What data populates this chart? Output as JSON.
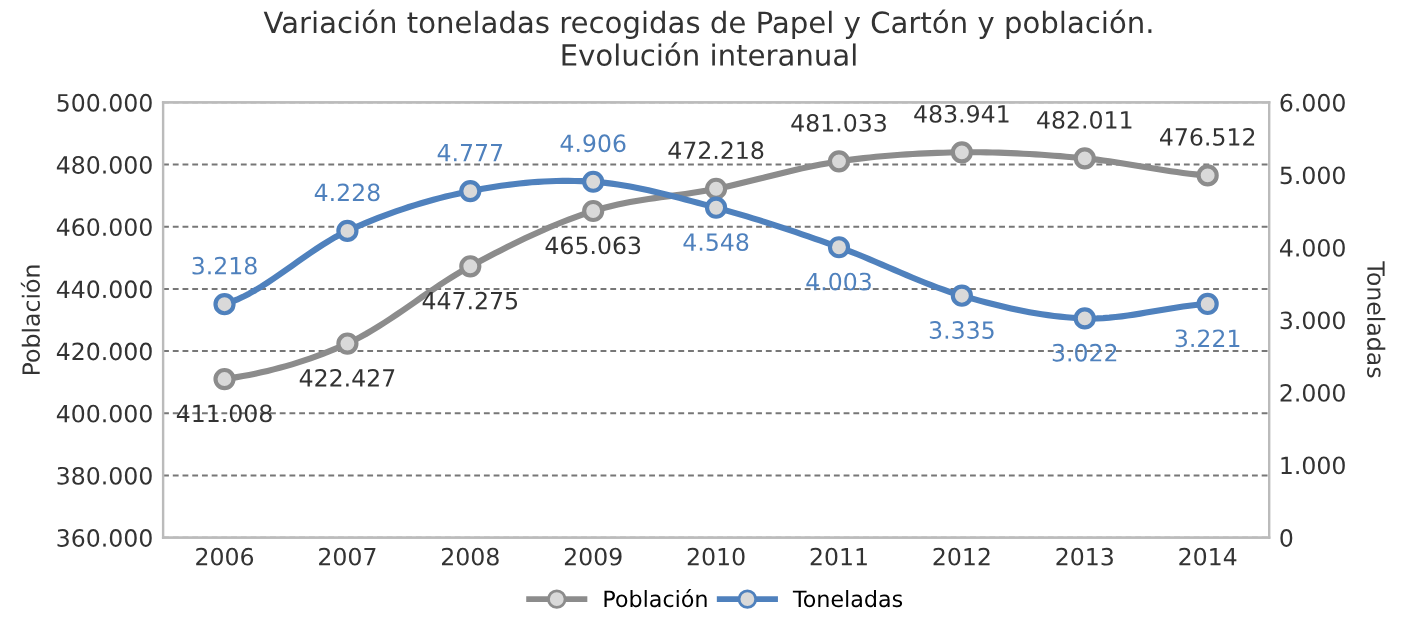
{
  "chart_data": {
    "type": "line",
    "title": "Variación toneladas recogidas de Papel y Cartón y población.\nEvolución interanual",
    "ylabel": "Población",
    "y2label": "Toneladas",
    "categories": [
      "2006",
      "2007",
      "2008",
      "2009",
      "2010",
      "2011",
      "2012",
      "2013",
      "2014"
    ],
    "series": [
      {
        "name": "Población",
        "color": "#8c8c8c",
        "values": [
          411008,
          422427,
          447275,
          465063,
          472218,
          481033,
          483941,
          482011,
          476512
        ],
        "value_labels": [
          "411.008",
          "422.427",
          "447.275",
          "465.063",
          "472.218",
          "481.033",
          "483.941",
          "482.011",
          "476.512"
        ]
      },
      {
        "name": "Toneladas",
        "color": "#4f81bd",
        "axis": "y2",
        "values": [
          3218,
          4228,
          4777,
          4906,
          4548,
          4003,
          3335,
          3022,
          3221
        ],
        "value_labels": [
          "3.218",
          "4.228",
          "4.777",
          "4.906",
          "4.548",
          "4.003",
          "3.335",
          "3.022",
          "3.221"
        ]
      }
    ],
    "ylim": [
      360000,
      500000
    ],
    "yticks": [
      {
        "value": 360000,
        "label": "360.000"
      },
      {
        "value": 380000,
        "label": "380.000"
      },
      {
        "value": 400000,
        "label": "400.000"
      },
      {
        "value": 420000,
        "label": "420.000"
      },
      {
        "value": 440000,
        "label": "440.000"
      },
      {
        "value": 460000,
        "label": "460.000"
      },
      {
        "value": 480000,
        "label": "480.000"
      },
      {
        "value": 500000,
        "label": "500.000"
      }
    ],
    "y2lim": [
      0,
      6000
    ],
    "y2ticks": [
      0,
      {
        "value": 1000,
        "label": "1.000"
      },
      {
        "value": 2000,
        "label": "2.000"
      },
      {
        "value": 3000,
        "label": "3.000"
      },
      {
        "value": 4000,
        "label": "4.000"
      },
      {
        "value": 5000,
        "label": "5.000"
      },
      {
        "value": 6000,
        "label": "6.000"
      }
    ],
    "grid": "y",
    "legend": "bottom",
    "marker": "circle",
    "line_style": "solid"
  }
}
